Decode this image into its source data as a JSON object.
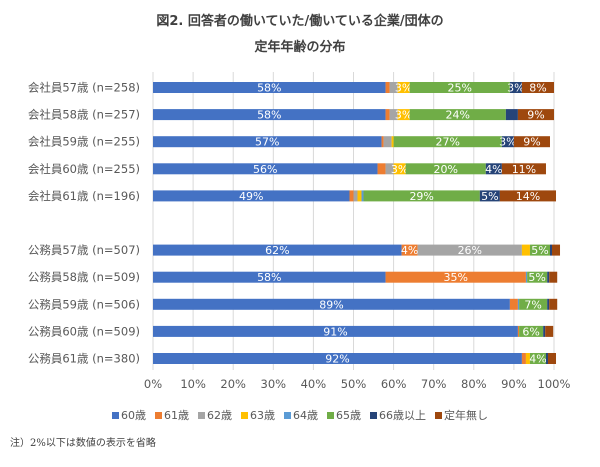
{
  "chart_data": {
    "type": "bar",
    "orientation": "horizontal-stacked-100",
    "title": "図2. 回答者の働いていた/働いている企業/団体の",
    "title_line2": "定年年齢の分布",
    "xlabel": "",
    "ylabel": "",
    "xlim": [
      0,
      100
    ],
    "x_ticks": [
      "0%",
      "10%",
      "20%",
      "30%",
      "40%",
      "50%",
      "60%",
      "70%",
      "80%",
      "90%",
      "100%"
    ],
    "grid": "vertical",
    "legend_position": "bottom",
    "categories": [
      "会社員57歳 (n=258)",
      "会社員58歳 (n=257)",
      "会社員59歳 (n=255)",
      "会社員60歳 (n=255)",
      "会社員61歳 (n=196)",
      "",
      "公務員57歳 (n=507)",
      "公務員58歳 (n=509)",
      "公務員59歳 (n=506)",
      "公務員60歳 (n=509)",
      "公務員61歳 (n=380)"
    ],
    "series": [
      {
        "name": "60歳",
        "color": "#4472C4",
        "label_color": "#ffffff",
        "values": [
          58,
          58,
          57,
          56,
          49,
          null,
          62,
          58,
          89,
          91,
          92
        ]
      },
      {
        "name": "61歳",
        "color": "#ED7D31",
        "label_color": "#ffffff",
        "values": [
          1,
          1,
          0.5,
          2,
          1,
          null,
          4,
          35,
          2,
          0.3,
          1
        ]
      },
      {
        "name": "62歳",
        "color": "#A5A5A5",
        "label_color": "#ffffff",
        "values": [
          2,
          2,
          2,
          2,
          1,
          null,
          26,
          0,
          0,
          0,
          0
        ]
      },
      {
        "name": "63歳",
        "color": "#FFC000",
        "label_color": "#ffffff",
        "values": [
          3,
          3,
          0.5,
          3,
          1,
          null,
          2,
          0,
          0,
          0,
          1
        ]
      },
      {
        "name": "64歳",
        "color": "#5B9BD5",
        "label_color": "#ffffff",
        "values": [
          0,
          0,
          0,
          0,
          0.5,
          null,
          0,
          0.3,
          0.3,
          0,
          0
        ]
      },
      {
        "name": "65歳",
        "color": "#70AD47",
        "label_color": "#ffffff",
        "values": [
          25,
          24,
          27,
          20,
          29,
          null,
          5,
          5,
          7,
          6,
          4
        ]
      },
      {
        "name": "66歳以上",
        "color": "#264478",
        "label_color": "#ffffff",
        "values": [
          3,
          3,
          3,
          4,
          5,
          null,
          0.5,
          0.5,
          0.5,
          0.5,
          0.5
        ]
      },
      {
        "name": "定年無し",
        "color": "#9E480E",
        "label_color": "#ffffff",
        "values": [
          8,
          9,
          9,
          11,
          14,
          null,
          2,
          2,
          2,
          2,
          2
        ]
      }
    ],
    "data_labels": [
      [
        "58%",
        "",
        "",
        "3%",
        "",
        "25%",
        "3%",
        "8%"
      ],
      [
        "58%",
        "",
        "",
        "3%",
        "",
        "24%",
        "",
        "9%"
      ],
      [
        "57%",
        "",
        "",
        "",
        "",
        "27%",
        "3%",
        "9%"
      ],
      [
        "56%",
        "",
        "",
        "3%",
        "",
        "20%",
        "4%",
        "11%"
      ],
      [
        "49%",
        "",
        "",
        "",
        "",
        "29%",
        "5%",
        "14%"
      ],
      null,
      [
        "62%",
        "4%",
        "26%",
        "",
        "",
        "5%",
        "",
        ""
      ],
      [
        "58%",
        "35%",
        "",
        "",
        "",
        "5%",
        "",
        ""
      ],
      [
        "89%",
        "",
        "",
        "",
        "",
        "7%",
        "",
        ""
      ],
      [
        "91%",
        "",
        "",
        "",
        "",
        "6%",
        "",
        ""
      ],
      [
        "92%",
        "",
        "",
        "",
        "",
        "4%",
        "",
        ""
      ]
    ],
    "note": "注）2%以下は数値の表示を省略"
  }
}
